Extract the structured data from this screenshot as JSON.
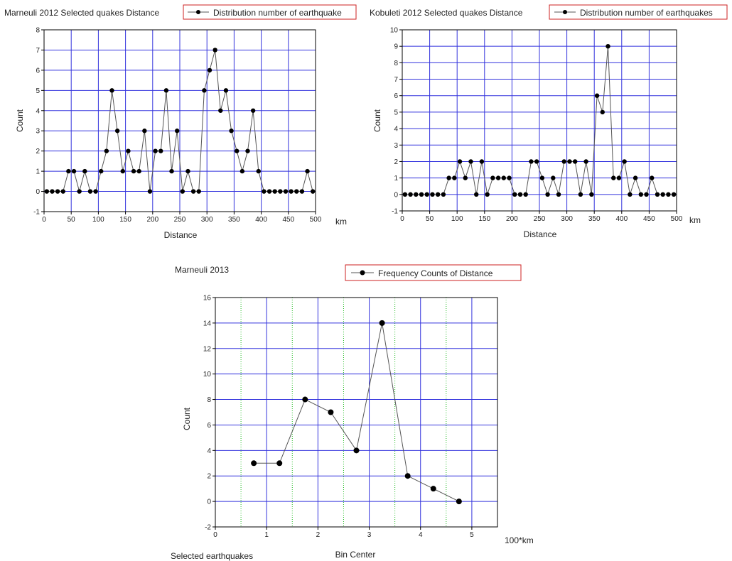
{
  "colors": {
    "grid_major": "#3333dd",
    "grid_minor": "#22bb22",
    "line": "#555555",
    "marker": "#000000",
    "legend_border": "#cc2222"
  },
  "chart_data": [
    {
      "type": "line",
      "title": "Marneuli 2012 Selected quakes Distance",
      "legend": "Distribution number of earthquake",
      "xlabel": "Distance",
      "ylabel": "Count",
      "unit": "km",
      "xlim": [
        0,
        500
      ],
      "ylim": [
        -1,
        8
      ],
      "xticks": [
        "0",
        "50",
        "100",
        "150",
        "200",
        "250",
        "300",
        "350",
        "400",
        "450",
        "500"
      ],
      "yticks": [
        "-1",
        "0",
        "1",
        "2",
        "3",
        "4",
        "5",
        "6",
        "7",
        "8"
      ],
      "x": [
        5,
        15,
        25,
        35,
        45,
        55,
        65,
        75,
        85,
        95,
        105,
        115,
        125,
        135,
        145,
        155,
        165,
        175,
        185,
        195,
        205,
        215,
        225,
        235,
        245,
        255,
        265,
        275,
        285,
        295,
        305,
        315,
        325,
        335,
        345,
        355,
        365,
        375,
        385,
        395,
        405,
        415,
        425,
        435,
        445,
        455,
        465,
        475,
        485,
        495
      ],
      "y": [
        0,
        0,
        0,
        0,
        1,
        1,
        0,
        1,
        0,
        0,
        1,
        2,
        5,
        3,
        1,
        2,
        1,
        1,
        3,
        0,
        2,
        2,
        5,
        1,
        3,
        0,
        1,
        0,
        0,
        5,
        6,
        7,
        4,
        5,
        3,
        2,
        1,
        2,
        4,
        1,
        0,
        0,
        0,
        0,
        0,
        0,
        0,
        0,
        1,
        0
      ]
    },
    {
      "type": "line",
      "title": "Kobuleti 2012 Selected quakes Distance",
      "legend": "Distribution number of earthquakes",
      "xlabel": "Distance",
      "ylabel": "Count",
      "unit": "km",
      "xlim": [
        0,
        500
      ],
      "ylim": [
        -1,
        10
      ],
      "xticks": [
        "0",
        "50",
        "100",
        "150",
        "200",
        "250",
        "300",
        "350",
        "400",
        "450",
        "500"
      ],
      "yticks": [
        "-1",
        "0",
        "1",
        "2",
        "3",
        "4",
        "5",
        "6",
        "7",
        "8",
        "9",
        "10"
      ],
      "x": [
        5,
        15,
        25,
        35,
        45,
        55,
        65,
        75,
        85,
        95,
        105,
        115,
        125,
        135,
        145,
        155,
        165,
        175,
        185,
        195,
        205,
        215,
        225,
        235,
        245,
        255,
        265,
        275,
        285,
        295,
        305,
        315,
        325,
        335,
        345,
        355,
        365,
        375,
        385,
        395,
        405,
        415,
        425,
        435,
        445,
        455,
        465,
        475,
        485,
        495
      ],
      "y": [
        0,
        0,
        0,
        0,
        0,
        0,
        0,
        0,
        1,
        1,
        2,
        1,
        2,
        0,
        2,
        0,
        1,
        1,
        1,
        1,
        0,
        0,
        0,
        2,
        2,
        1,
        0,
        1,
        0,
        2,
        2,
        2,
        0,
        2,
        0,
        6,
        5,
        9,
        1,
        1,
        2,
        0,
        1,
        0,
        0,
        1,
        0,
        0,
        0,
        0
      ]
    },
    {
      "type": "line",
      "title": "Marneuli 2013",
      "legend": "Frequency Counts of Distance",
      "xlabel": "Bin Center",
      "ylabel": "Count",
      "unit": "100*km",
      "footnote": "Selected earthquakes",
      "xlim": [
        0,
        5.5
      ],
      "ylim": [
        -2,
        16
      ],
      "xticks": [
        "0",
        "1",
        "2",
        "3",
        "4",
        "5"
      ],
      "yticks": [
        "-2",
        "0",
        "2",
        "4",
        "6",
        "8",
        "10",
        "12",
        "14",
        "16"
      ],
      "x": [
        0.75,
        1.25,
        1.75,
        2.25,
        2.75,
        3.25,
        3.75,
        4.25,
        4.75
      ],
      "y": [
        3,
        3,
        8,
        7,
        4,
        14,
        2,
        1,
        0
      ]
    }
  ]
}
